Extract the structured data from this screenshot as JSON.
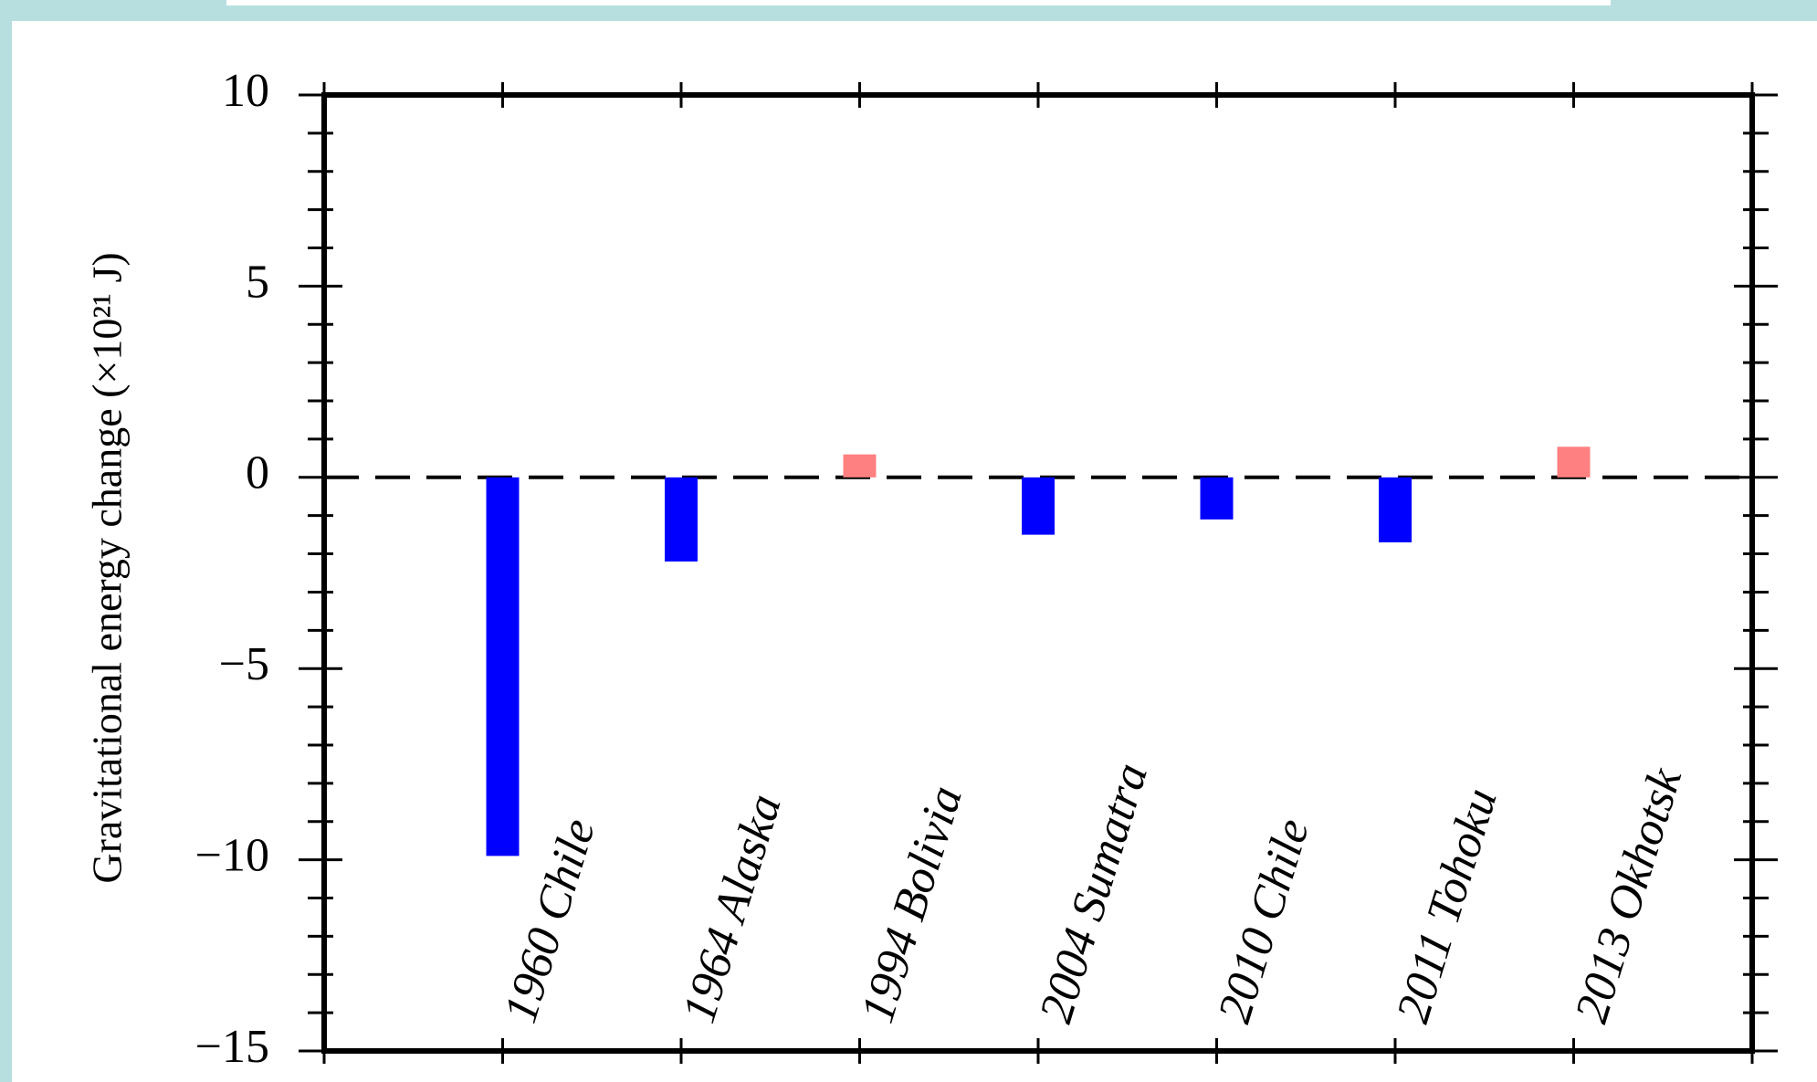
{
  "chart_data": {
    "type": "bar",
    "y_label": "Gravitational energy change (×10²¹ J)",
    "categories": [
      "1960 Chile",
      "1964 Alaska",
      "1994 Bolivia",
      "2004 Sumatra",
      "2010 Chile",
      "2011 Tohoku",
      "2013 Okhotsk"
    ],
    "values": [
      -9.9,
      -2.2,
      0.6,
      -1.5,
      -1.1,
      -1.7,
      0.8
    ],
    "colors": [
      "#0000ff",
      "#0000ff",
      "#ff8080",
      "#0000ff",
      "#0000ff",
      "#0000ff",
      "#ff8080"
    ],
    "ylim": [
      -15,
      10
    ],
    "yticks": [
      {
        "value": -15,
        "label": "−15"
      },
      {
        "value": -10,
        "label": "−10"
      },
      {
        "value": -5,
        "label": "−5"
      },
      0,
      5,
      10
    ],
    "yminorticks": [
      -14,
      -13,
      -12,
      -11,
      -9,
      -8,
      -7,
      -6,
      -4,
      -3,
      -2,
      -1,
      1,
      2,
      3,
      4,
      6,
      7,
      8,
      9
    ],
    "grid": false
  }
}
